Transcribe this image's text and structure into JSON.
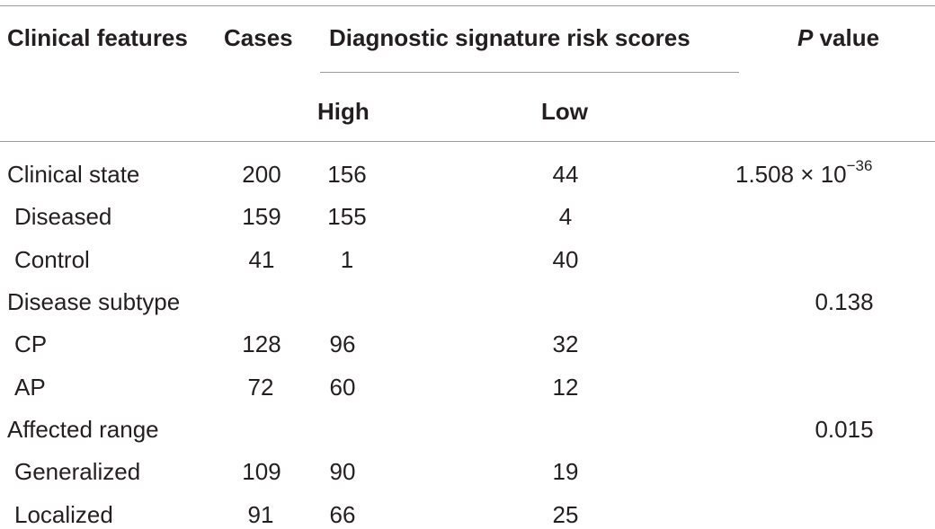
{
  "table": {
    "headers": {
      "clinical_features": "Clinical features",
      "cases": "Cases",
      "risk_scores": "Diagnostic signature risk scores",
      "p_italic": "P",
      "p_rest": " value",
      "high": "High",
      "low": "Low"
    },
    "rows": [
      {
        "feature": "Clinical state",
        "cases": "200",
        "high": "156",
        "low": "44",
        "p_base": "1.508 × 10",
        "p_exp": "−36"
      },
      {
        "feature": "Diseased",
        "cases": "159",
        "high": "155",
        "low": "4",
        "p": ""
      },
      {
        "feature": "Control",
        "cases": "41",
        "high": "1",
        "low": "40",
        "p": ""
      },
      {
        "feature": "Disease subtype",
        "cases": "",
        "high": "",
        "low": "",
        "p": "0.138"
      },
      {
        "feature": "CP",
        "cases": "128",
        "high": "96",
        "low": "32",
        "p": ""
      },
      {
        "feature": "AP",
        "cases": "72",
        "high": "60",
        "low": "12",
        "p": ""
      },
      {
        "feature": "Affected range",
        "cases": "",
        "high": "",
        "low": "",
        "p": "0.015"
      },
      {
        "feature": "Generalized",
        "cases": "109",
        "high": "90",
        "low": "19",
        "p": ""
      },
      {
        "feature": "Localized",
        "cases": "91",
        "high": "66",
        "low": "25",
        "p": ""
      }
    ]
  }
}
